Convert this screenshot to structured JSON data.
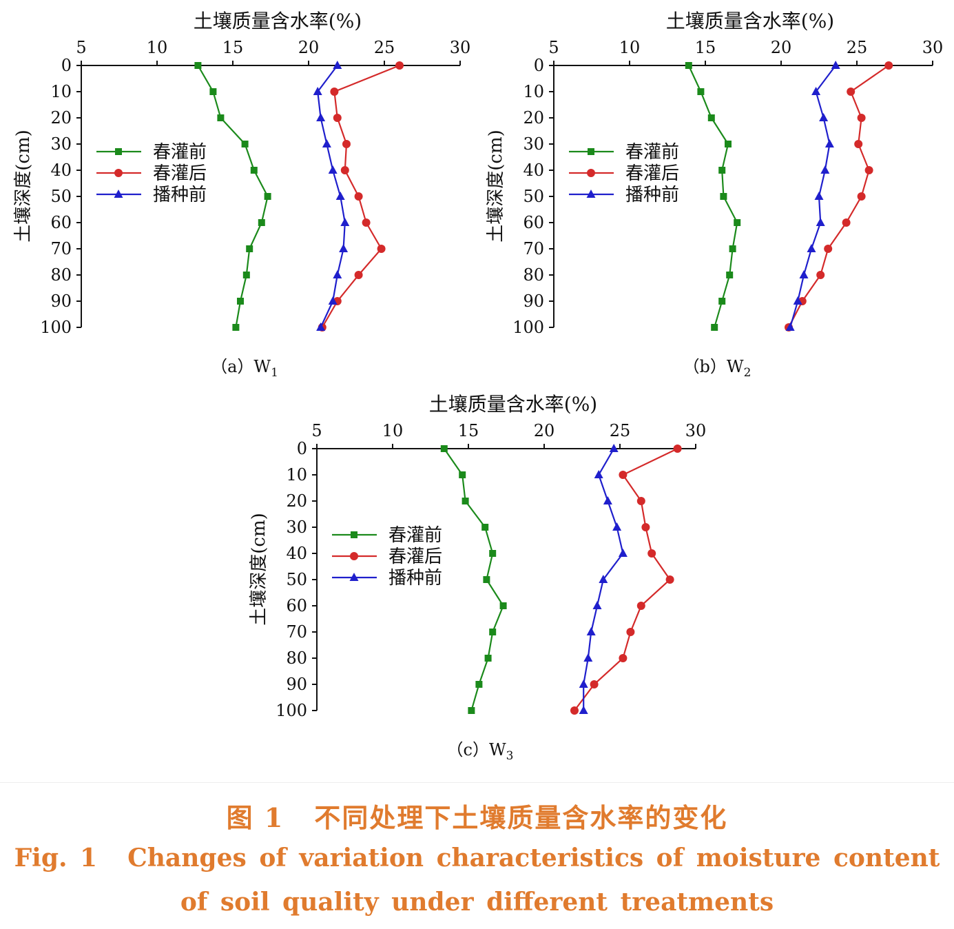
{
  "colors": {
    "series": [
      "#1b8a1b",
      "#d42a2a",
      "#1f1fcc"
    ],
    "axis": "#111111",
    "caption": "#e07b2e"
  },
  "chart_data": [
    {
      "type": "line",
      "panel_label": "（a）W",
      "panel_sub": "1",
      "xlabel": "土壤质量含水率(%)",
      "ylabel": "土壤深度(cm)",
      "xlim": [
        5,
        30
      ],
      "ylim": [
        0,
        100
      ],
      "y_inverted": true,
      "x_ticks": [
        5,
        10,
        15,
        20,
        25,
        30
      ],
      "y_ticks": [
        0,
        10,
        20,
        30,
        40,
        50,
        60,
        70,
        80,
        90,
        100
      ],
      "legend_position": "left-middle",
      "depth": [
        0,
        10,
        20,
        30,
        40,
        50,
        60,
        70,
        80,
        90,
        100
      ],
      "series": [
        {
          "name": "春灌前",
          "marker": "square",
          "values": [
            12.7,
            13.7,
            14.2,
            15.8,
            16.4,
            17.3,
            16.9,
            16.1,
            15.9,
            15.5,
            15.2
          ]
        },
        {
          "name": "春灌后",
          "marker": "circle",
          "values": [
            26.0,
            21.7,
            21.9,
            22.5,
            22.4,
            23.3,
            23.8,
            24.8,
            23.3,
            21.9,
            20.9
          ]
        },
        {
          "name": "播种前",
          "marker": "triangle",
          "values": [
            21.9,
            20.6,
            20.8,
            21.2,
            21.6,
            22.1,
            22.4,
            22.3,
            21.9,
            21.6,
            20.8
          ]
        }
      ]
    },
    {
      "type": "line",
      "panel_label": "（b）W",
      "panel_sub": "2",
      "xlabel": "土壤质量含水率(%)",
      "ylabel": "土壤深度(cm)",
      "xlim": [
        5,
        30
      ],
      "ylim": [
        0,
        100
      ],
      "y_inverted": true,
      "x_ticks": [
        5,
        10,
        15,
        20,
        25,
        30
      ],
      "y_ticks": [
        0,
        10,
        20,
        30,
        40,
        50,
        60,
        70,
        80,
        90,
        100
      ],
      "legend_position": "left-middle",
      "depth": [
        0,
        10,
        20,
        30,
        40,
        50,
        60,
        70,
        80,
        90,
        100
      ],
      "series": [
        {
          "name": "春灌前",
          "marker": "square",
          "values": [
            13.9,
            14.7,
            15.4,
            16.5,
            16.1,
            16.2,
            17.1,
            16.8,
            16.6,
            16.1,
            15.6
          ]
        },
        {
          "name": "春灌后",
          "marker": "circle",
          "values": [
            27.1,
            24.6,
            25.3,
            25.1,
            25.8,
            25.3,
            24.3,
            23.1,
            22.6,
            21.4,
            20.5
          ]
        },
        {
          "name": "播种前",
          "marker": "triangle",
          "values": [
            23.6,
            22.3,
            22.8,
            23.2,
            22.9,
            22.5,
            22.6,
            22.0,
            21.5,
            21.1,
            20.6
          ]
        }
      ]
    },
    {
      "type": "line",
      "panel_label": "（c）W",
      "panel_sub": "3",
      "xlabel": "土壤质量含水率(%)",
      "ylabel": "土壤深度(cm)",
      "xlim": [
        5,
        30
      ],
      "ylim": [
        0,
        100
      ],
      "y_inverted": true,
      "x_ticks": [
        5,
        10,
        15,
        20,
        25,
        30
      ],
      "y_ticks": [
        0,
        10,
        20,
        30,
        40,
        50,
        60,
        70,
        80,
        90,
        100
      ],
      "legend_position": "left-middle",
      "depth": [
        0,
        10,
        20,
        30,
        40,
        50,
        60,
        70,
        80,
        90,
        100
      ],
      "series": [
        {
          "name": "春灌前",
          "marker": "square",
          "values": [
            13.4,
            14.6,
            14.8,
            16.1,
            16.6,
            16.2,
            17.3,
            16.6,
            16.3,
            15.7,
            15.2
          ]
        },
        {
          "name": "春灌后",
          "marker": "circle",
          "values": [
            28.8,
            25.2,
            26.4,
            26.7,
            27.1,
            28.3,
            26.4,
            25.7,
            25.2,
            23.3,
            22.0
          ]
        },
        {
          "name": "播种前",
          "marker": "triangle",
          "values": [
            24.6,
            23.6,
            24.2,
            24.8,
            25.2,
            23.9,
            23.5,
            23.1,
            22.9,
            22.6,
            22.6
          ]
        }
      ]
    }
  ],
  "caption": {
    "cn_label": "图 1",
    "cn_text": "不同处理下土壤质量含水率的变化",
    "en_label": "Fig. 1",
    "en_line1": "Changes of variation characteristics of moisture content",
    "en_line2": "of soil quality under different treatments"
  }
}
